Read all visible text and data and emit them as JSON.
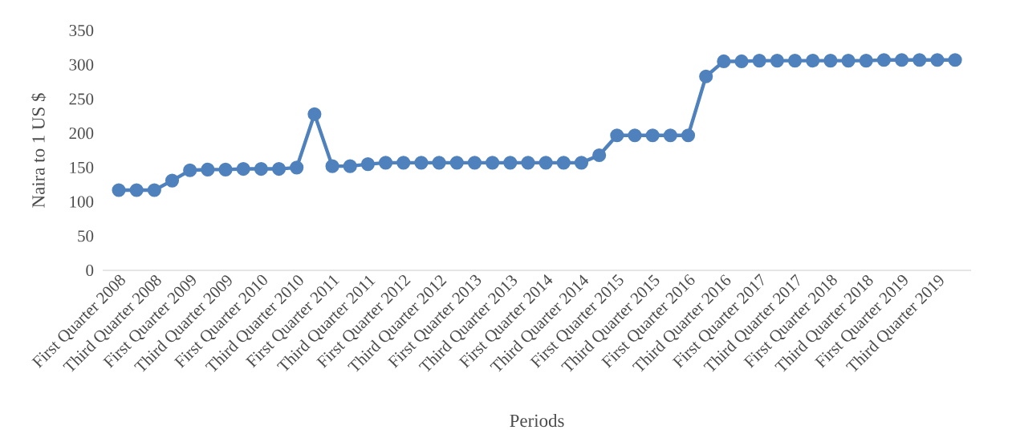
{
  "chart_data": {
    "type": "line",
    "xlabel": "Periods",
    "ylabel": "Naira to 1 US $",
    "categories": [
      "First Quarter 2008",
      null,
      "Third Quarter 2008",
      null,
      "First Quarter 2009",
      null,
      "Third Quarter 2009",
      null,
      "First Quarter 2010",
      null,
      "Third Quarter 2010",
      null,
      "First Quarter 2011",
      null,
      "Third Quarter 2011",
      null,
      "First Quarter 2012",
      null,
      "Third Quarter 2012",
      null,
      "First Quarter 2013",
      null,
      "Third Quarter 2013",
      null,
      "First Quarter 2014",
      null,
      "Third Quarter 2014",
      null,
      "First Quarter 2015",
      null,
      "Third Quarter 2015",
      null,
      "First Quarter 2016",
      null,
      "Third Quarter 2016",
      null,
      "First Quarter 2017",
      null,
      "Third Quarter 2017",
      null,
      "First Quarter 2018",
      null,
      "Third Quarter 2018",
      null,
      "First Quarter 2019",
      null,
      "Third Quarter 2019",
      null
    ],
    "series": [
      {
        "color": "#4f81bd",
        "values": [
          117,
          117,
          117,
          131,
          146,
          147,
          147,
          148,
          148,
          148,
          150,
          228,
          152,
          152,
          155,
          157,
          157,
          157,
          157,
          157,
          157,
          157,
          157,
          157,
          157,
          157,
          157,
          168,
          197,
          197,
          197,
          197,
          197,
          283,
          305,
          305,
          306,
          306,
          306,
          306,
          306,
          306,
          306,
          307,
          307,
          307,
          307,
          307
        ]
      }
    ],
    "ylim": [
      0,
      350
    ],
    "yticks": [
      0,
      50,
      100,
      150,
      200,
      250,
      300,
      350
    ],
    "marker": "circle",
    "line_style": "solid"
  }
}
